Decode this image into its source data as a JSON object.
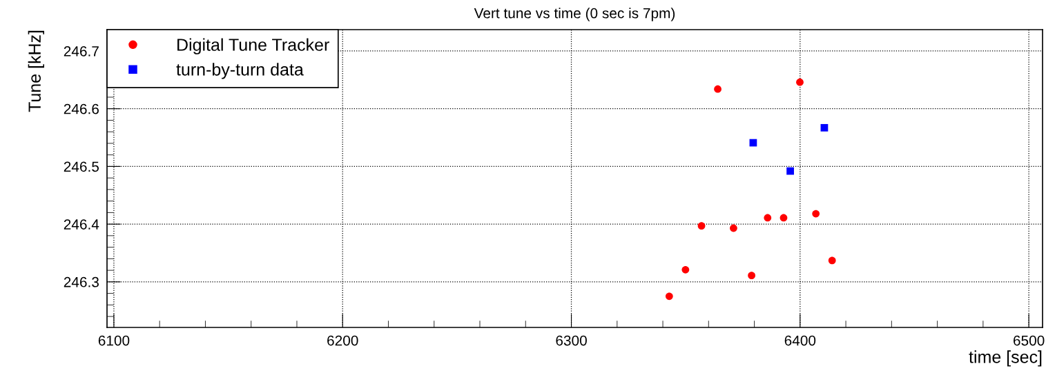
{
  "chart_data": {
    "type": "scatter",
    "title": "Vert tune vs time (0 sec is 7pm)",
    "xlabel": "time [sec]",
    "ylabel": "Tune [kHz]",
    "xlim": [
      6097,
      6506
    ],
    "xticks": [
      6100,
      6200,
      6300,
      6400,
      6500
    ],
    "ylim": [
      246.221,
      246.737
    ],
    "yticks": [
      246.3,
      246.4,
      246.5,
      246.6,
      246.7
    ],
    "grid": true,
    "legend": "top left",
    "series": [
      {
        "name": "Digital Tune Tracker",
        "color": "#ff0000",
        "marker": "circle",
        "x": [
          6342.8,
          6349.9,
          6356.9,
          6364.0,
          6370.9,
          6378.8,
          6385.8,
          6392.8,
          6399.9,
          6406.9,
          6414.0
        ],
        "values": [
          246.275,
          246.321,
          246.397,
          246.634,
          246.393,
          246.311,
          246.411,
          246.411,
          246.646,
          246.418,
          246.337
        ]
      },
      {
        "name": "turn-by-turn data",
        "color": "#0000ff",
        "marker": "square",
        "x": [
          6379.5,
          6395.7,
          6410.6
        ],
        "values": [
          246.541,
          246.492,
          246.567
        ]
      }
    ]
  }
}
